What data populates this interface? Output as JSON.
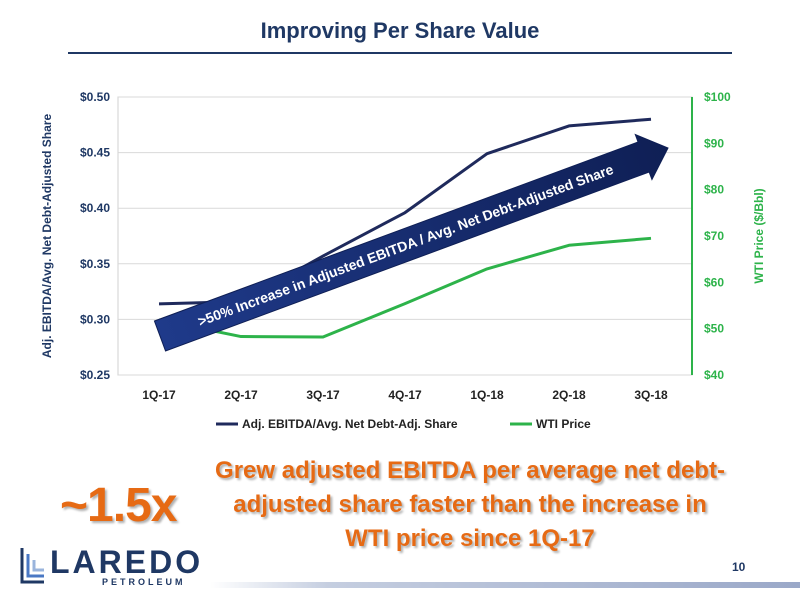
{
  "title": "Improving Per Share Value",
  "chart_data": {
    "type": "line",
    "categories": [
      "1Q-17",
      "2Q-17",
      "3Q-17",
      "4Q-17",
      "1Q-18",
      "2Q-18",
      "3Q-18"
    ],
    "series": [
      {
        "name": "Adj. EBITDA/Avg. Net Debt-Adj. Share",
        "axis": "left",
        "color": "#1f2a5c",
        "values": [
          0.314,
          0.316,
          0.357,
          0.396,
          0.449,
          0.474,
          0.48
        ]
      },
      {
        "name": "WTI Price",
        "axis": "right",
        "color": "#2db34a",
        "values": [
          51.9,
          48.3,
          48.2,
          55.4,
          62.9,
          68.0,
          69.5
        ]
      }
    ],
    "y_left": {
      "label": "Adj. EBITDA/Avg. Net Debt-Adjusted Share",
      "min": 0.25,
      "max": 0.5,
      "ticks": [
        "$0.25",
        "$0.30",
        "$0.35",
        "$0.40",
        "$0.45",
        "$0.50"
      ],
      "color": "#1f3864"
    },
    "y_right": {
      "label": "WTI Price ($/Bbl)",
      "min": 40,
      "max": 100,
      "ticks": [
        "$40",
        "$50",
        "$60",
        "$70",
        "$80",
        "$90",
        "$100"
      ],
      "color": "#2db34a"
    },
    "grid": true,
    "legend_position": "bottom",
    "annotation": ">50% Increase in Adjusted EBITDA / Avg. Net Debt-Adjusted Share"
  },
  "callout": {
    "big": "~1.5x",
    "text": "Grew adjusted EBITDA per average net debt-adjusted share faster than the increase in WTI price since 1Q-17"
  },
  "logo": {
    "name": "LAREDO",
    "sub": "PETROLEUM"
  },
  "page_number": "10"
}
